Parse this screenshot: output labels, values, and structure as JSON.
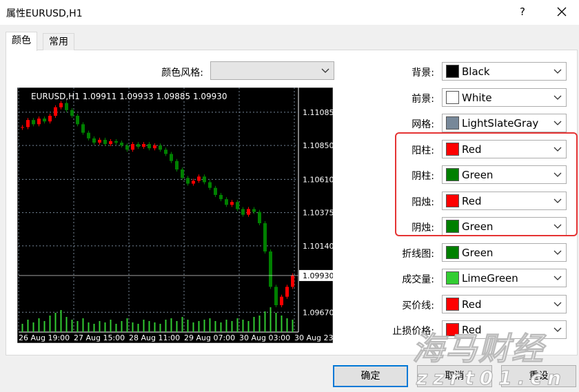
{
  "window": {
    "title": "属性EURUSD,H1",
    "help": "?"
  },
  "tabs": [
    "颜色",
    "常用"
  ],
  "style_label": "颜色风格:",
  "chart": {
    "header": "EURUSD,H1  1.09911 1.09933 1.09885 1.09930",
    "ylim": [
      1.0953,
      1.1126
    ],
    "yticks": [
      1.11085,
      {
        "value": 1.1085,
        "label": "1.10850"
      },
      {
        "value": 1.1061,
        "label": "1.10610"
      },
      1.10375,
      {
        "value": 1.1014,
        "label": "1.10140"
      },
      {
        "value": 1.0967,
        "label": "1.09670"
      }
    ],
    "bid": {
      "value": 1.0993,
      "label": "1.09930"
    },
    "time_labels": [
      "26 Aug 19:00",
      "27 Aug 15:00",
      "28 Aug 11:00",
      "29 Aug 07:00",
      "30 Aug 03:00",
      "30 Aug 23"
    ],
    "closes": [
      1.1098,
      1.1103,
      1.11,
      1.1104,
      1.1102,
      1.1106,
      1.1112,
      1.1115,
      1.111,
      1.1106,
      1.11,
      1.1094,
      1.109,
      1.1087,
      1.1089,
      1.1086,
      1.1088,
      1.1087,
      1.1085,
      1.1082,
      1.1086,
      1.1084,
      1.1086,
      1.1083,
      1.1085,
      1.1082,
      1.1079,
      1.1074,
      1.1068,
      1.1062,
      1.1058,
      1.106,
      1.1063,
      1.1059,
      1.1055,
      1.105,
      1.1047,
      1.1043,
      1.1045,
      1.104,
      1.1036,
      1.104,
      1.1038,
      1.103,
      1.101,
      1.0985,
      1.0972,
      1.0978,
      1.0985,
      1.0993
    ],
    "volumes": [
      30,
      45,
      35,
      50,
      40,
      60,
      70,
      80,
      55,
      45,
      40,
      50,
      35,
      30,
      40,
      35,
      45,
      30,
      40,
      50,
      35,
      30,
      45,
      40,
      35,
      30,
      45,
      50,
      40,
      55,
      45,
      35,
      40,
      45,
      50,
      40,
      35,
      45,
      40,
      50,
      45,
      40,
      55,
      60,
      75,
      90,
      70,
      60,
      50,
      45
    ],
    "vlim": [
      0,
      100
    ],
    "up_color": "#ff0000",
    "down_color": "#008000",
    "grid_color": "#778899",
    "volume_color": "#32cd32",
    "foreground": "#ffffff"
  },
  "colors": [
    {
      "label": "背景:",
      "value": "Black",
      "swatch": "#000000"
    },
    {
      "label": "前景:",
      "value": "White",
      "swatch": "#ffffff"
    },
    {
      "label": "网格:",
      "value": "LightSlateGray",
      "swatch": "#778899"
    },
    {
      "label": "阳柱:",
      "value": "Red",
      "swatch": "#ff0000"
    },
    {
      "label": "阴柱:",
      "value": "Green",
      "swatch": "#008000"
    },
    {
      "label": "阳烛:",
      "value": "Red",
      "swatch": "#ff0000"
    },
    {
      "label": "阴烛:",
      "value": "Green",
      "swatch": "#008000"
    },
    {
      "label": "折线图:",
      "value": "Green",
      "swatch": "#008000"
    },
    {
      "label": "成交量:",
      "value": "LimeGreen",
      "swatch": "#32cd32"
    },
    {
      "label": "买价线:",
      "value": "Red",
      "swatch": "#ff0000"
    },
    {
      "label": "止损价格:",
      "value": "Red",
      "swatch": "#ff0000"
    }
  ],
  "buttons": [
    "确定",
    "取消",
    "重设"
  ],
  "watermark": [
    "海马财经",
    "zzrt01.cn"
  ]
}
